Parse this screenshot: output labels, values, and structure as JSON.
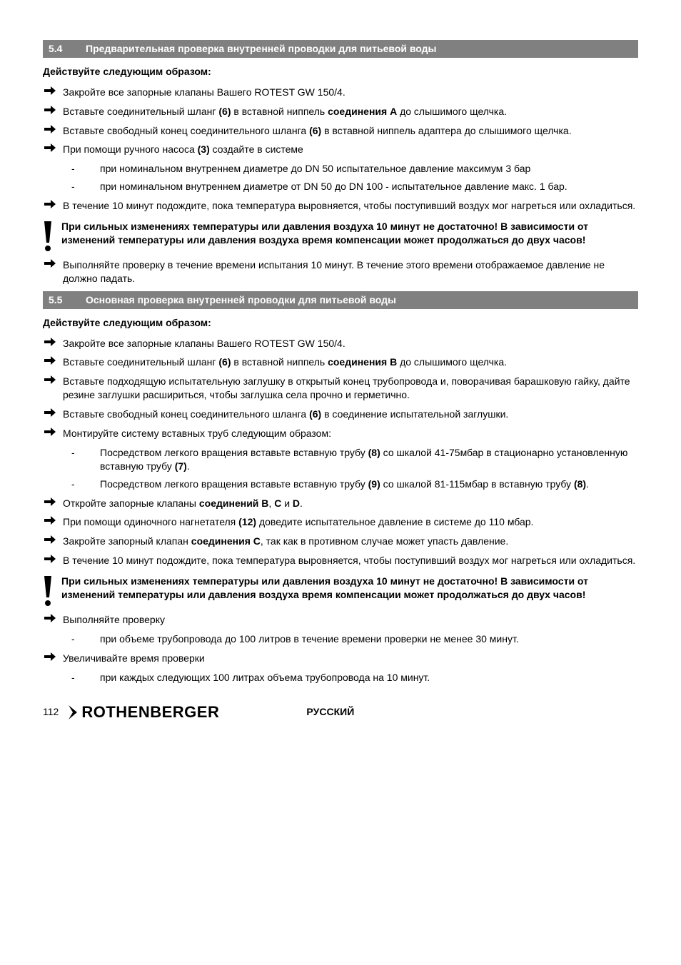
{
  "colors": {
    "header_bg": "#808080",
    "header_fg": "#ffffff",
    "text": "#000000",
    "page_bg": "#ffffff"
  },
  "typography": {
    "body_font": "Arial",
    "body_size_pt": 10.5,
    "header_size_pt": 10.5,
    "brand_size_pt": 17
  },
  "sections": [
    {
      "num": "5.4",
      "title": "Предварительная проверка внутренней проводки для питьевой воды",
      "lead": "Действуйте следующим образом:",
      "items": [
        {
          "type": "bullet",
          "html": "Закройте все запорные клапаны Вашего ROTEST GW 150/4."
        },
        {
          "type": "bullet",
          "html": "Вставьте соединительный шланг <b>(6)</b> в вставной ниппель <b>соединения A</b> до слышимого щелчка."
        },
        {
          "type": "bullet",
          "html": "Вставьте свободный конец соединительного шланга <b>(6)</b> в вставной ниппель адаптера до слышимого щелчка."
        },
        {
          "type": "bullet",
          "html": "При помощи ручного насоса <b>(3)</b> создайте в системе",
          "sub": [
            "при номинальном внутреннем диаметре до DN 50 испытательное давление максимум 3 бар",
            "при номинальном внутреннем диаметре от DN 50 до DN 100 - испытательное давление макс. 1 бар."
          ]
        },
        {
          "type": "bullet",
          "html": "В течение 10 минут подождите, пока температура выровняется, чтобы поступивший воздух мог нагреться или охладиться."
        },
        {
          "type": "warning",
          "html": "При сильных изменениях температуры или давления воздуха 10 минут не достаточно! В зависимости от изменений температуры или давления воздуха время компенсации может продолжаться до двух часов!"
        },
        {
          "type": "bullet",
          "html": "Выполняйте проверку в течение времени испытания 10 минут. В течение этого времени отображаемое давление не должно падать."
        }
      ]
    },
    {
      "num": "5.5",
      "title": "Основная проверка внутренней проводки для питьевой воды",
      "lead": "Действуйте следующим образом:",
      "items": [
        {
          "type": "bullet",
          "html": "Закройте все запорные клапаны Вашего ROTEST GW 150/4."
        },
        {
          "type": "bullet",
          "html": "Вставьте соединительный шланг <b>(6)</b> в вставной ниппель <b>соединения B</b> до слышимого щелчка."
        },
        {
          "type": "bullet",
          "html": "Вставьте подходящую испытательную заглушку в открытый конец трубопровода и, поворачивая барашковую гайку, дайте резине заглушки расшириться, чтобы заглушка села прочно и герметично."
        },
        {
          "type": "bullet",
          "html": "Вставьте свободный конец соединительного шланга <b>(6)</b> в соединение испытательной заглушки."
        },
        {
          "type": "bullet",
          "html": "Монтируйте систему вставных труб следующим образом:",
          "sub": [
            "Посредством легкого вращения вставьте вставную трубу <b>(8)</b> со шкалой 41-75мбар в стационарно установленную вставную трубу <b>(7)</b>.",
            "Посредством легкого вращения вставьте вставную трубу <b>(9)</b> со шкалой 81-115мбар в вставную трубу <b>(8)</b>."
          ]
        },
        {
          "type": "bullet",
          "html": "Откройте запорные клапаны <b>соединений B</b>, <b>C</b> и <b>D</b>."
        },
        {
          "type": "bullet",
          "html": "При помощи одиночного нагнетателя <b>(12)</b> доведите испытательное давление в системе до 110 мбар."
        },
        {
          "type": "bullet",
          "html": "Закройте запорный клапан <b>соединения C</b>, так как в противном случае может упасть давление."
        },
        {
          "type": "bullet",
          "html": "В течение 10 минут подождите, пока температура выровняется, чтобы поступивший воздух мог нагреться или охладиться."
        },
        {
          "type": "warning",
          "html": "При сильных изменениях температуры или давления воздуха 10 минут не достаточно! В зависимости от изменений температуры или давления воздуха время компенсации может продолжаться до двух часов!"
        },
        {
          "type": "bullet",
          "html": "Выполняйте проверку",
          "sub": [
            "при объеме трубопровода до 100 литров в течение времени проверки не менее 30 минут."
          ]
        },
        {
          "type": "bullet",
          "html": "Увеличивайте время проверки",
          "sub": [
            "при каждых следующих 100 литрах объема трубопровода на 10 минут."
          ]
        }
      ]
    }
  ],
  "footer": {
    "page": "112",
    "brand": "ROTHENBERGER",
    "lang": "PУССКИЙ"
  }
}
